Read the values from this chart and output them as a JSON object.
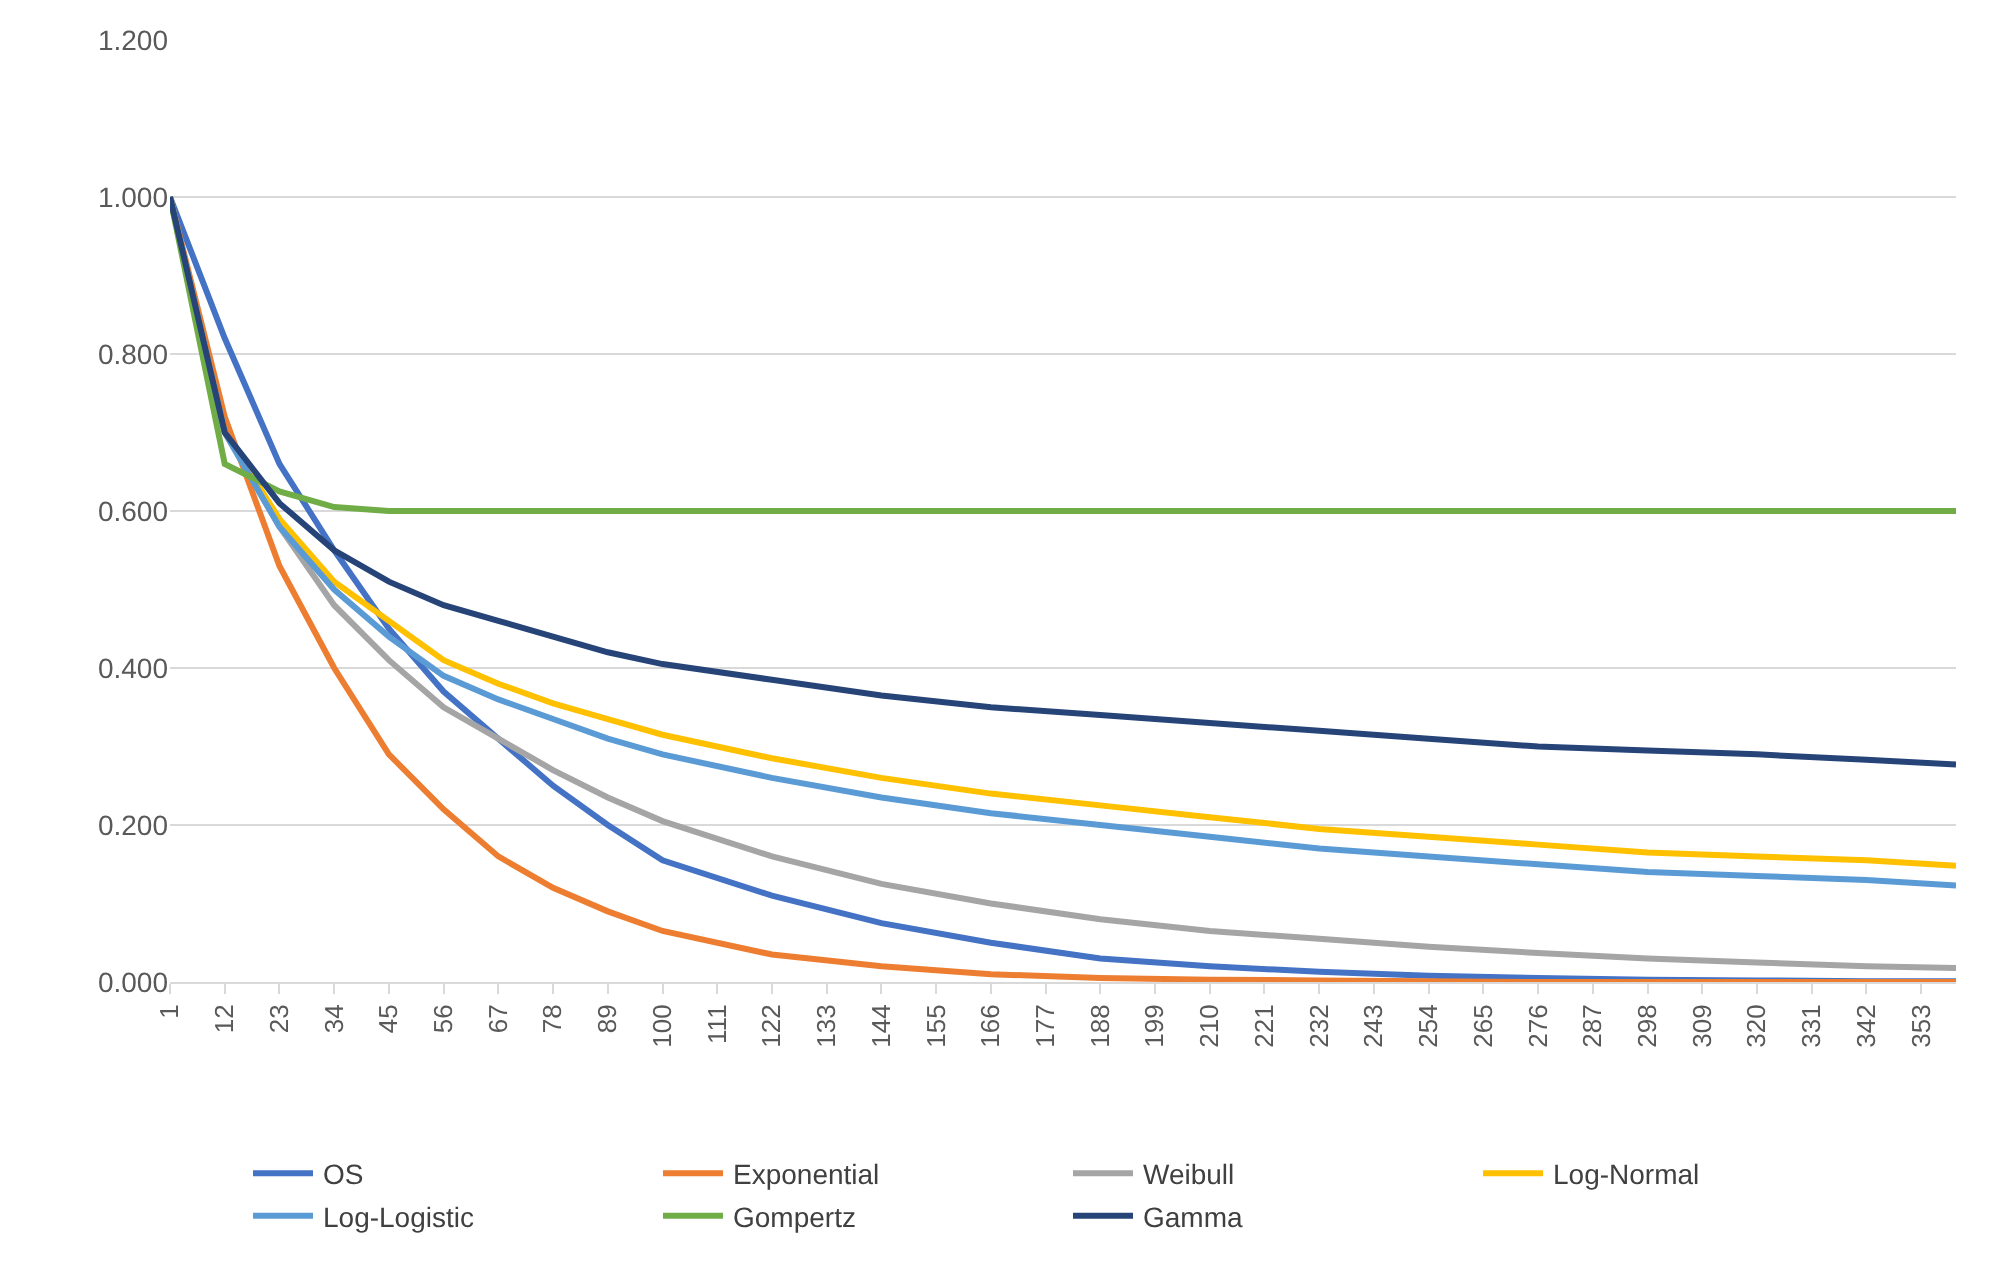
{
  "chart_data": {
    "type": "line",
    "x": [
      1,
      12,
      23,
      34,
      45,
      56,
      67,
      78,
      89,
      100,
      122,
      144,
      166,
      188,
      210,
      232,
      254,
      276,
      298,
      320,
      342,
      360
    ],
    "xlim": [
      1,
      360
    ],
    "xticks": [
      1,
      12,
      23,
      34,
      45,
      56,
      67,
      78,
      89,
      100,
      111,
      122,
      133,
      144,
      155,
      166,
      177,
      188,
      199,
      210,
      221,
      232,
      243,
      254,
      265,
      276,
      287,
      298,
      309,
      320,
      331,
      342,
      353
    ],
    "ylim": [
      0,
      1.2
    ],
    "yticks": [
      {
        "value": 0,
        "label": "0.000"
      },
      {
        "value": 0.2,
        "label": "0.200"
      },
      {
        "value": 0.4,
        "label": "0.400"
      },
      {
        "value": 0.6,
        "label": "0.600"
      },
      {
        "value": 0.8,
        "label": "0.800"
      },
      {
        "value": 1,
        "label": "1.000"
      },
      {
        "value": 1.2,
        "label": "1.200"
      }
    ],
    "grid": "y",
    "legend": "bottom",
    "marker": "none",
    "line_style": "solid",
    "series": [
      {
        "name": "OS",
        "color": "#4472c4",
        "values": [
          1,
          0.82,
          0.66,
          0.55,
          0.45,
          0.37,
          0.31,
          0.25,
          0.2,
          0.155,
          0.11,
          0.075,
          0.05,
          0.03,
          0.02,
          0.013,
          0.008,
          0.005,
          0.003,
          0.002,
          0.001,
          0.001
        ]
      },
      {
        "name": "Exponential",
        "color": "#ed7d31",
        "values": [
          1,
          0.72,
          0.53,
          0.4,
          0.29,
          0.22,
          0.16,
          0.12,
          0.09,
          0.065,
          0.035,
          0.02,
          0.01,
          0.005,
          0.003,
          0.002,
          0.001,
          0,
          0,
          0,
          0,
          0
        ]
      },
      {
        "name": "Weibull",
        "color": "#a5a5a5",
        "values": [
          1,
          0.7,
          0.58,
          0.48,
          0.41,
          0.35,
          0.31,
          0.27,
          0.235,
          0.205,
          0.16,
          0.125,
          0.1,
          0.08,
          0.065,
          0.055,
          0.045,
          0.037,
          0.03,
          0.025,
          0.02,
          0.018
        ]
      },
      {
        "name": "Log-Normal",
        "color": "#ffc000",
        "values": [
          1,
          0.7,
          0.59,
          0.51,
          0.46,
          0.41,
          0.38,
          0.355,
          0.335,
          0.315,
          0.285,
          0.26,
          0.24,
          0.225,
          0.21,
          0.195,
          0.185,
          0.175,
          0.165,
          0.16,
          0.155,
          0.148
        ]
      },
      {
        "name": "Log-Logistic",
        "color": "#5b9bd5",
        "values": [
          1,
          0.7,
          0.58,
          0.5,
          0.44,
          0.39,
          0.36,
          0.335,
          0.31,
          0.29,
          0.26,
          0.235,
          0.215,
          0.2,
          0.185,
          0.17,
          0.16,
          0.15,
          0.14,
          0.135,
          0.13,
          0.123
        ]
      },
      {
        "name": "Gompertz",
        "color": "#70ad47",
        "values": [
          1,
          0.66,
          0.625,
          0.605,
          0.6,
          0.6,
          0.6,
          0.6,
          0.6,
          0.6,
          0.6,
          0.6,
          0.6,
          0.6,
          0.6,
          0.6,
          0.6,
          0.6,
          0.6,
          0.6,
          0.6,
          0.6
        ]
      },
      {
        "name": "Gamma",
        "color": "#264478",
        "values": [
          1,
          0.7,
          0.61,
          0.55,
          0.51,
          0.48,
          0.46,
          0.44,
          0.42,
          0.405,
          0.385,
          0.365,
          0.35,
          0.34,
          0.33,
          0.32,
          0.31,
          0.3,
          0.295,
          0.29,
          0.283,
          0.277
        ]
      }
    ]
  }
}
